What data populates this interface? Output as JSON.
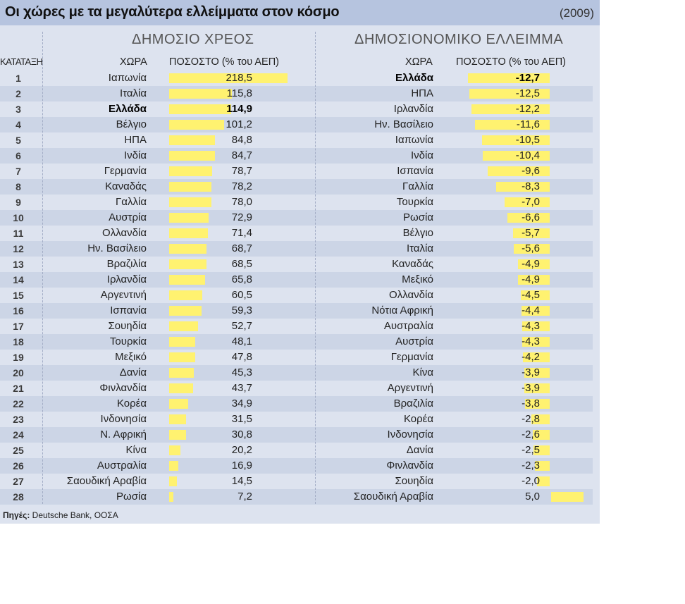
{
  "title": "Οι χώρες με τα μεγαλύτερα ελλείμματα στον κόσμο",
  "year": "(2009)",
  "rank_header": "ΚΑΤΑΤΑΞΗ",
  "source_label": "Πηγές:",
  "source_text": "Deutsche Bank, ΟΟΣΑ",
  "colors": {
    "bar": "#fff270",
    "header_bg": "#b6c4df",
    "panel_bg": "#dde3ef",
    "alt_row": "#ccd5e6"
  },
  "chart_data": [
    {
      "type": "bar",
      "title": "ΔΗΜΟΣΙΟ ΧΡΕΟΣ",
      "country_header": "ΧΩΡΑ",
      "value_header": "ΠΟΣΟΣΤΟ (% του ΑΕΠ)",
      "ranks": [
        "1",
        "2",
        "3",
        "4",
        "5",
        "6",
        "7",
        "8",
        "9",
        "10",
        "11",
        "12",
        "13",
        "14",
        "15",
        "16",
        "17",
        "18",
        "19",
        "20",
        "21",
        "22",
        "23",
        "24",
        "25",
        "26",
        "27",
        "28"
      ],
      "categories": [
        "Ιαπωνία",
        "Ιταλία",
        "Ελλάδα",
        "Βέλγιο",
        "ΗΠΑ",
        "Ινδία",
        "Γερμανία",
        "Καναδάς",
        "Γαλλία",
        "Αυστρία",
        "Ολλανδία",
        "Ην. Βασίλειο",
        "Βραζιλία",
        "Ιρλανδία",
        "Αργεντινή",
        "Ισπανία",
        "Σουηδία",
        "Τουρκία",
        "Μεξικό",
        "Δανία",
        "Φινλανδία",
        "Κορέα",
        "Ινδονησία",
        "Ν. Αφρική",
        "Κίνα",
        "Αυστραλία",
        "Σαουδική Αραβία",
        "Ρωσία"
      ],
      "values": [
        218.5,
        115.8,
        114.9,
        101.2,
        84.8,
        84.7,
        78.7,
        78.2,
        78.0,
        72.9,
        71.4,
        68.7,
        68.5,
        65.8,
        60.5,
        59.3,
        52.7,
        48.1,
        47.8,
        45.3,
        43.7,
        34.9,
        31.5,
        30.8,
        20.2,
        16.9,
        14.5,
        7.2
      ],
      "labels": [
        "218,5",
        "115,8",
        "114,9",
        "101,2",
        "84,8",
        "84,7",
        "78,7",
        "78,2",
        "78,0",
        "72,9",
        "71,4",
        "68,7",
        "68,5",
        "65,8",
        "60,5",
        "59,3",
        "52,7",
        "48,1",
        "47,8",
        "45,3",
        "43,7",
        "34,9",
        "31,5",
        "30,8",
        "20,2",
        "16,9",
        "14,5",
        "7,2"
      ],
      "highlight": "Ελλάδα"
    },
    {
      "type": "bar",
      "title": "ΔΗΜΟΣΙΟΝΟΜΙΚΟ ΕΛΛΕΙΜΜΑ",
      "country_header": "ΧΩΡΑ",
      "value_header": "ΠΟΣΟΣΤΟ (% του ΑΕΠ)",
      "categories": [
        "Ελλάδα",
        "ΗΠΑ",
        "Ιρλανδία",
        "Ην. Βασίλειο",
        "Ιαπωνία",
        "Ινδία",
        "Ισπανία",
        "Γαλλία",
        "Τουρκία",
        "Ρωσία",
        "Βέλγιο",
        "Ιταλία",
        "Καναδάς",
        "Μεξικό",
        "Ολλανδία",
        "Νότια Αφρική",
        "Αυστραλία",
        "Αυστρία",
        "Γερμανία",
        "Κίνα",
        "Αργεντινή",
        "Βραζιλία",
        "Κορέα",
        "Ινδονησία",
        "Δανία",
        "Φινλανδία",
        "Σουηδία",
        "Σαουδική Αραβία"
      ],
      "values": [
        -12.7,
        -12.5,
        -12.2,
        -11.6,
        -10.5,
        -10.4,
        -9.6,
        -8.3,
        -7.0,
        -6.6,
        -5.7,
        -5.6,
        -4.9,
        -4.9,
        -4.5,
        -4.4,
        -4.3,
        -4.3,
        -4.2,
        -3.9,
        -3.9,
        -3.8,
        -2.8,
        -2.6,
        -2.5,
        -2.3,
        -2.0,
        5.0
      ],
      "labels": [
        "-12,7",
        "-12,5",
        "-12,2",
        "-11,6",
        "-10,5",
        "-10,4",
        "-9,6",
        "-8,3",
        "-7,0",
        "-6,6",
        "-5,7",
        "-5,6",
        "-4,9",
        "-4,9",
        "-4,5",
        "-4,4",
        "-4,3",
        "-4,3",
        "-4,2",
        "-3,9",
        "-3,9",
        "-3,8",
        "-2,8",
        "-2,6",
        "-2,5",
        "-2,3",
        "-2,0",
        "5,0"
      ],
      "highlight": "Ελλάδα"
    }
  ]
}
